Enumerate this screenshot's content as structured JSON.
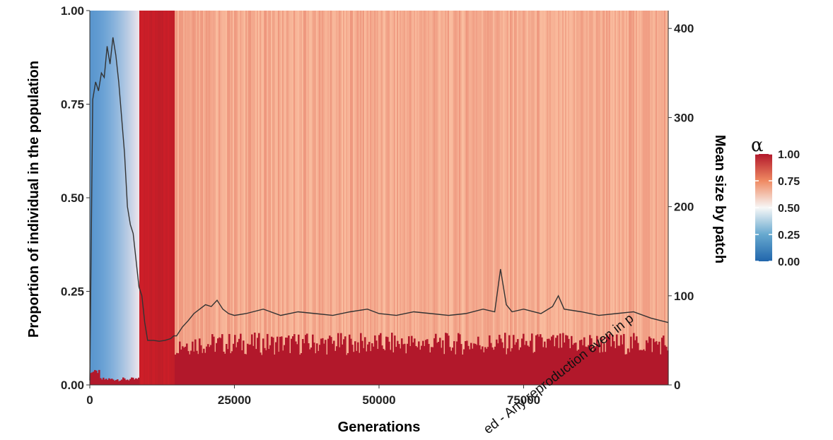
{
  "chart_data": {
    "type": "heatmap",
    "title": "",
    "xlabel": "Generations",
    "ylabel_left": "Proportion of individual in the population",
    "ylabel_right": "Mean size by patch",
    "xlim": [
      0,
      100000
    ],
    "ylim_left": [
      0,
      1
    ],
    "ylim_right": [
      0,
      420
    ],
    "x_ticks": [
      "0",
      "25000",
      "50000",
      "75000"
    ],
    "x_tick_values": [
      0,
      25000,
      50000,
      75000
    ],
    "y_left_ticks": [
      "0.00",
      "0.25",
      "0.50",
      "0.75",
      "1.00"
    ],
    "y_left_tick_values": [
      0,
      0.25,
      0.5,
      0.75,
      1.0
    ],
    "y_right_ticks": [
      "0",
      "100",
      "200",
      "300",
      "400"
    ],
    "y_right_tick_values": [
      0,
      100,
      200,
      300,
      400
    ],
    "legend": {
      "title": "α",
      "ticks": [
        "1.00",
        "0.75",
        "0.50",
        "0.25",
        "0.00"
      ],
      "tick_values": [
        1.0,
        0.75,
        0.5,
        0.25,
        0.0
      ],
      "colors": [
        "#b2182b",
        "#ef8a62",
        "#f7f7f7",
        "#67a9cf",
        "#2166ac"
      ],
      "placement": "right"
    },
    "stacked_alpha_phases": [
      {
        "start": 0,
        "end": 8500,
        "dominant_alpha": "low (0–0.4)",
        "high_alpha_fraction": 0.02
      },
      {
        "start": 8500,
        "end": 14500,
        "dominant_alpha": "1.00",
        "high_alpha_fraction": 1.0
      },
      {
        "start": 14500,
        "end": 100000,
        "dominant_alpha": "≈0.7",
        "high_alpha_fraction": 0.12
      }
    ],
    "series": [
      {
        "name": "",
        "axis": "right",
        "color": "#333333",
        "x": [
          0,
          500,
          1000,
          1500,
          2000,
          2500,
          3000,
          3500,
          4000,
          4500,
          5000,
          5500,
          6000,
          6500,
          7000,
          7500,
          8000,
          8500,
          9000,
          9500,
          10000,
          11000,
          12000,
          13000,
          14000,
          14500,
          15000,
          16000,
          17000,
          18000,
          19000,
          20000,
          21000,
          22000,
          23000,
          24000,
          25000,
          27000,
          30000,
          33000,
          36000,
          39000,
          42000,
          45000,
          48000,
          50000,
          53000,
          56000,
          59000,
          62000,
          65000,
          68000,
          70000,
          71000,
          72000,
          73000,
          75000,
          78000,
          80000,
          81000,
          82000,
          85000,
          88000,
          91000,
          94000,
          97000,
          100000
        ],
        "y": [
          5,
          320,
          340,
          330,
          350,
          345,
          380,
          360,
          390,
          370,
          340,
          300,
          260,
          200,
          180,
          170,
          140,
          110,
          100,
          70,
          50,
          50,
          49,
          50,
          52,
          55,
          55,
          65,
          72,
          80,
          85,
          90,
          88,
          95,
          85,
          80,
          78,
          80,
          85,
          78,
          82,
          80,
          78,
          82,
          85,
          80,
          78,
          82,
          80,
          78,
          80,
          85,
          82,
          130,
          90,
          82,
          85,
          80,
          88,
          100,
          85,
          82,
          78,
          80,
          82,
          75,
          70
        ]
      }
    ]
  },
  "watermark": {
    "text": "ed - Any reproduction even in p"
  }
}
